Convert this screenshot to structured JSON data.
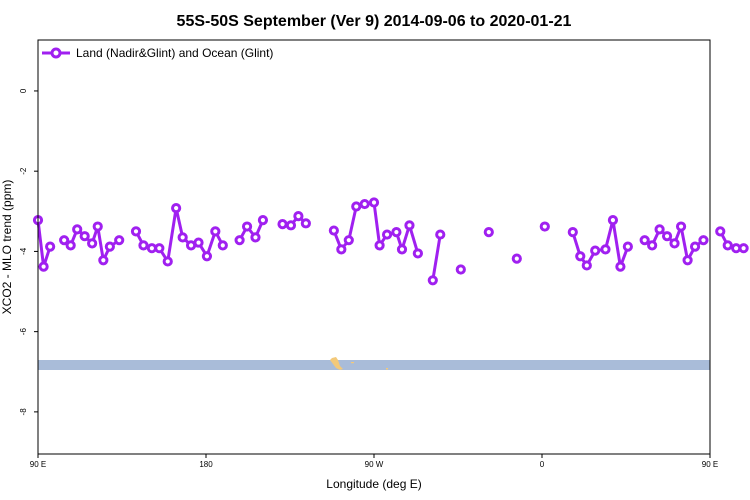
{
  "chart_data": {
    "type": "line",
    "title": "55S-50S September (Ver 9)   2014-09-06 to 2020-01-21",
    "xlabel": "Longitude (deg E)",
    "ylabel": "XCO2 - MLO trend (ppm)",
    "xlim": [
      90,
      450
    ],
    "ylim": [
      -9.05,
      1.27
    ],
    "x_ticks": [
      {
        "value": 90,
        "label": "90 E"
      },
      {
        "value": 180,
        "label": "180"
      },
      {
        "value": 270,
        "label": "90 W"
      },
      {
        "value": 360,
        "label": "0"
      },
      {
        "value": 450,
        "label": "90 E"
      },
      {
        "value": 540,
        "label": "180"
      }
    ],
    "y_ticks": [
      {
        "value": 0,
        "label": "0"
      },
      {
        "value": -2,
        "label": "-2"
      },
      {
        "value": -4,
        "label": "-4"
      },
      {
        "value": -6,
        "label": "-6"
      },
      {
        "value": -8,
        "label": "-8"
      }
    ],
    "grid": false,
    "legend_position": "top-left",
    "series": [
      {
        "name": "Land (Nadir&Glint) and Ocean (Glint)",
        "color": "#a020f0",
        "segments": [
          [
            [
              90,
              -3.22
            ],
            [
              93,
              -4.38
            ],
            [
              96.5,
              -3.88
            ]
          ],
          [
            [
              104,
              -3.72
            ],
            [
              107.5,
              -3.85
            ],
            [
              111,
              -3.45
            ],
            [
              115,
              -3.62
            ],
            [
              119,
              -3.8
            ],
            [
              122,
              -3.38
            ],
            [
              125,
              -4.22
            ],
            [
              128.5,
              -3.88
            ],
            [
              133.5,
              -3.72
            ]
          ],
          [
            [
              142.5,
              -3.5
            ],
            [
              146.5,
              -3.85
            ],
            [
              151,
              -3.92
            ],
            [
              155,
              -3.92
            ],
            [
              159.5,
              -4.25
            ],
            [
              164,
              -2.92
            ],
            [
              167.5,
              -3.65
            ],
            [
              172,
              -3.85
            ],
            [
              176,
              -3.78
            ],
            [
              180.5,
              -4.12
            ],
            [
              185,
              -3.5
            ],
            [
              189,
              -3.85
            ]
          ],
          [
            [
              198,
              -3.72
            ],
            [
              202,
              -3.38
            ],
            [
              206.5,
              -3.65
            ],
            [
              210.5,
              -3.22
            ]
          ],
          [
            [
              221,
              -3.32
            ],
            [
              225.5,
              -3.35
            ],
            [
              229.5,
              -3.12
            ],
            [
              233.5,
              -3.3
            ]
          ],
          [
            [
              248.5,
              -3.48
            ],
            [
              252.5,
              -3.95
            ],
            [
              256.5,
              -3.72
            ],
            [
              260.5,
              -2.88
            ],
            [
              265,
              -2.82
            ],
            [
              270,
              -2.78
            ],
            [
              273,
              -3.85
            ],
            [
              277,
              -3.58
            ],
            [
              282,
              -3.52
            ],
            [
              285,
              -3.95
            ],
            [
              289,
              -3.35
            ],
            [
              293.5,
              -4.05
            ]
          ],
          [
            [
              301.5,
              -4.72
            ],
            [
              305.5,
              -3.58
            ]
          ],
          [
            [
              316.5,
              -4.45
            ]
          ],
          [
            [
              331.5,
              -3.52
            ]
          ],
          [
            [
              346.5,
              -4.18
            ]
          ],
          [
            [
              361.5,
              -3.38
            ]
          ],
          [
            [
              376.5,
              -3.52
            ],
            [
              380.5,
              -4.12
            ],
            [
              384,
              -4.35
            ],
            [
              388.5,
              -3.98
            ],
            [
              394,
              -3.95
            ],
            [
              398,
              -3.22
            ],
            [
              402,
              -4.38
            ],
            [
              406,
              -3.88
            ]
          ],
          [
            [
              415,
              -3.72
            ],
            [
              419,
              -3.85
            ],
            [
              423,
              -3.45
            ],
            [
              427,
              -3.62
            ],
            [
              431,
              -3.8
            ],
            [
              434.5,
              -3.38
            ],
            [
              438,
              -4.22
            ],
            [
              442,
              -3.88
            ],
            [
              446.5,
              -3.72
            ]
          ],
          [
            [
              455.5,
              -3.5
            ],
            [
              459.5,
              -3.85
            ],
            [
              464,
              -3.92
            ],
            [
              468,
              -3.92
            ]
          ]
        ]
      }
    ]
  }
}
